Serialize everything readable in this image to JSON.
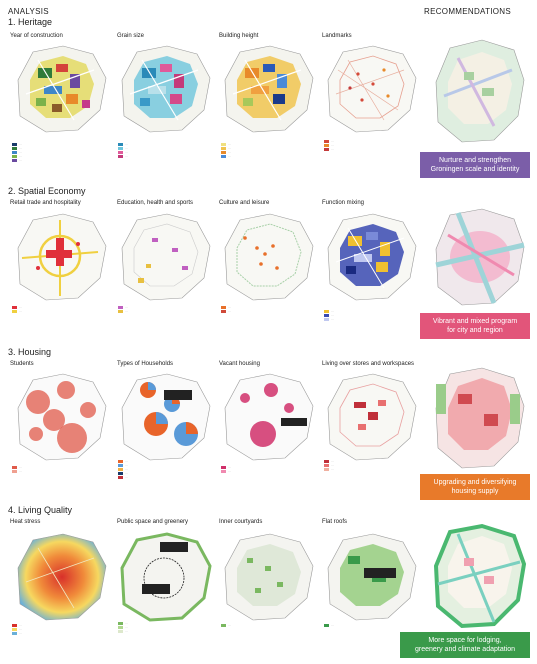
{
  "header": {
    "analysis": "ANALYSIS",
    "recommendations": "RECOMMENDATIONS"
  },
  "sections": [
    {
      "title": "1. Heritage",
      "maps": [
        "Year of construction",
        "Grain size",
        "Building height",
        "Landmarks"
      ],
      "recommendation": [
        "Nurture and strengthen",
        "Groningen scale and identity"
      ],
      "rec_color": "#7b5ea8"
    },
    {
      "title": "2. Spatial Economy",
      "maps": [
        "Retail trade and hospitality",
        "Education, health and sports",
        "Culture and leisure",
        "Function mixing"
      ],
      "recommendation": [
        "Vibrant and mixed program",
        "for city and region"
      ],
      "rec_color": "#e2557a"
    },
    {
      "title": "3. Housing",
      "maps": [
        "Students",
        "Types of Households",
        "Vacant housing",
        "Living over stores and workspaces"
      ],
      "recommendation": [
        "Upgrading and diversifying",
        "housing supply"
      ],
      "rec_color": "#e87a2a"
    },
    {
      "title": "4. Living Quality",
      "maps": [
        "Heat stress",
        "Public space and greenery",
        "Inner courtyards",
        "Flat roofs"
      ],
      "recommendation": [
        "More space for lodging,",
        "greenery and climate adaptation"
      ],
      "rec_color": "#3a9a4a"
    }
  ]
}
